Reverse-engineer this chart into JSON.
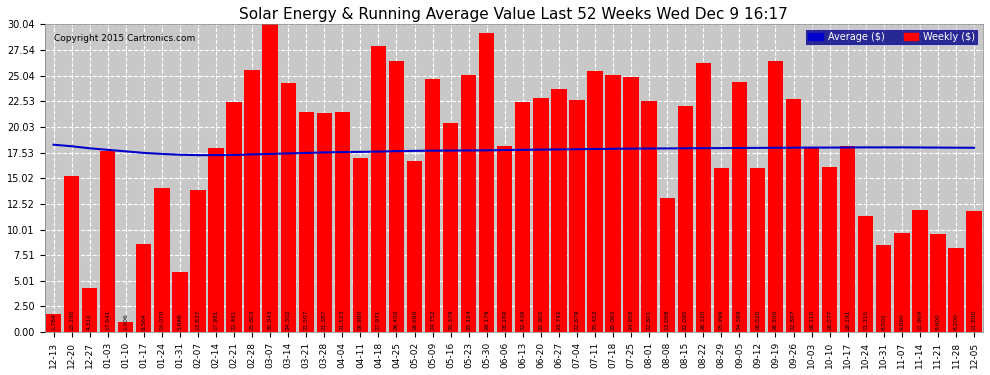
{
  "title": "Solar Energy & Running Average Value Last 52 Weeks Wed Dec 9 16:17",
  "copyright": "Copyright 2015 Cartronics.com",
  "bar_color": "#FF0000",
  "avg_line_color": "#0000CC",
  "background_color": "#FFFFFF",
  "plot_bg_color": "#C8C8C8",
  "ylim": [
    0,
    30.04
  ],
  "yticks": [
    0.0,
    2.5,
    5.01,
    7.51,
    10.01,
    12.52,
    15.02,
    17.53,
    20.03,
    22.53,
    25.04,
    27.54,
    30.04
  ],
  "labels": [
    "12-13",
    "12-20",
    "12-27",
    "01-03",
    "01-10",
    "01-17",
    "01-24",
    "01-31",
    "02-07",
    "02-14",
    "02-21",
    "02-28",
    "03-07",
    "03-14",
    "03-21",
    "03-28",
    "04-04",
    "04-11",
    "04-18",
    "04-25",
    "05-02",
    "05-09",
    "05-16",
    "05-23",
    "05-30",
    "06-06",
    "06-13",
    "06-20",
    "06-27",
    "07-04",
    "07-11",
    "07-18",
    "07-25",
    "08-01",
    "08-08",
    "08-15",
    "08-22",
    "08-29",
    "09-05",
    "09-12",
    "09-19",
    "09-26",
    "10-03",
    "10-10",
    "10-17",
    "10-24",
    "10-31",
    "11-07",
    "11-14",
    "11-21",
    "11-28",
    "12-05"
  ],
  "values": [
    1.784,
    15.29,
    4.312,
    17.641,
    1.006,
    8.564,
    14.07,
    5.846,
    13.837,
    17.981,
    22.481,
    25.603,
    30.043,
    24.302,
    21.507,
    21.387,
    21.523,
    16.98,
    27.971,
    26.45,
    16.699,
    24.752,
    20.379,
    25.124,
    29.179,
    18.169,
    22.439,
    22.902,
    23.742,
    22.679,
    25.452,
    25.063,
    24.958,
    22.601,
    13.058,
    22.095,
    26.32,
    15.999,
    24.389,
    16.02,
    26.5,
    22.807,
    18.11,
    16.077,
    18.191,
    11.315,
    8.501,
    9.69,
    11.969,
    9.6,
    8.2,
    11.8
  ],
  "avg_values": [
    18.3,
    18.15,
    17.95,
    17.8,
    17.65,
    17.5,
    17.4,
    17.32,
    17.28,
    17.28,
    17.3,
    17.35,
    17.4,
    17.45,
    17.5,
    17.55,
    17.58,
    17.6,
    17.63,
    17.67,
    17.7,
    17.72,
    17.73,
    17.74,
    17.75,
    17.78,
    17.8,
    17.82,
    17.84,
    17.86,
    17.88,
    17.9,
    17.92,
    17.93,
    17.94,
    17.95,
    17.96,
    17.97,
    17.98,
    17.99,
    18.0,
    18.01,
    18.02,
    18.02,
    18.03,
    18.04,
    18.04,
    18.04,
    18.03,
    18.02,
    18.01,
    18.0
  ],
  "legend_avg_label": "Average ($)",
  "legend_weekly_label": "Weekly ($)"
}
